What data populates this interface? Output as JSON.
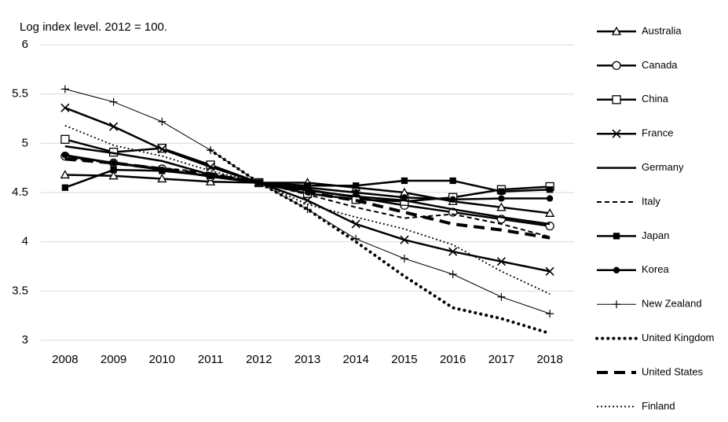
{
  "chart_data": {
    "type": "line",
    "title": "Log index level. 2012 = 100.",
    "categories": [
      "2008",
      "2009",
      "2010",
      "2011",
      "2012",
      "2013",
      "2014",
      "2015",
      "2016",
      "2017",
      "2018"
    ],
    "ylim": [
      3,
      6
    ],
    "yticks": [
      3,
      3.5,
      4,
      4.5,
      5,
      5.5,
      6
    ],
    "grid": true,
    "legend": "right",
    "series": [
      {
        "name": "Australia",
        "color": "#000000",
        "marker": "triangle",
        "dash": "none",
        "width": 2.5,
        "values": [
          4.68,
          4.67,
          4.64,
          4.61,
          4.6,
          4.6,
          4.55,
          4.5,
          4.41,
          4.35,
          4.29
        ]
      },
      {
        "name": "Canada",
        "color": "#000000",
        "marker": "circle",
        "dash": "none",
        "width": 2.5,
        "values": [
          4.87,
          4.8,
          4.74,
          4.66,
          4.6,
          4.53,
          4.45,
          4.37,
          4.3,
          4.23,
          4.16
        ]
      },
      {
        "name": "China",
        "color": "#000000",
        "marker": "square",
        "dash": "none",
        "width": 2.5,
        "values": [
          5.04,
          4.91,
          4.95,
          4.78,
          4.6,
          4.49,
          4.43,
          4.41,
          4.45,
          4.53,
          4.56
        ]
      },
      {
        "name": "France",
        "color": "#000000",
        "marker": "x",
        "dash": "none",
        "width": 2.5,
        "values": [
          5.36,
          5.17,
          4.94,
          4.76,
          4.6,
          4.42,
          4.18,
          4.02,
          3.9,
          3.8,
          3.7
        ]
      },
      {
        "name": "Germany",
        "color": "#000000",
        "marker": "none",
        "dash": "none",
        "width": 2.5,
        "values": [
          4.97,
          4.9,
          4.82,
          4.68,
          4.6,
          4.52,
          4.46,
          4.42,
          4.33,
          4.25,
          4.18
        ]
      },
      {
        "name": "Italy",
        "color": "#000000",
        "marker": "none",
        "dash": "6,4",
        "width": 2,
        "values": [
          4.85,
          4.8,
          4.75,
          4.7,
          4.6,
          4.48,
          4.35,
          4.24,
          4.28,
          4.18,
          4.05
        ]
      },
      {
        "name": "Japan",
        "color": "#000000",
        "marker": "filled-square",
        "dash": "none",
        "width": 2.5,
        "values": [
          4.55,
          4.73,
          4.72,
          4.67,
          4.6,
          4.57,
          4.57,
          4.62,
          4.62,
          4.51,
          4.53
        ]
      },
      {
        "name": "Korea",
        "color": "#000000",
        "marker": "filled-circle",
        "dash": "none",
        "width": 2.5,
        "values": [
          4.88,
          4.8,
          4.73,
          4.67,
          4.6,
          4.55,
          4.5,
          4.45,
          4.43,
          4.44,
          4.44
        ]
      },
      {
        "name": "New Zealand",
        "color": "#000000",
        "marker": "plus",
        "dash": "none",
        "width": 1,
        "values": [
          5.55,
          5.42,
          5.22,
          4.93,
          4.6,
          4.33,
          4.03,
          3.83,
          3.67,
          3.44,
          3.27
        ]
      },
      {
        "name": "United Kingdom",
        "color": "#000000",
        "marker": "none",
        "dash": "0.1,7",
        "width": 4,
        "values": [
          null,
          null,
          null,
          4.93,
          4.6,
          4.33,
          4.0,
          3.65,
          3.33,
          3.22,
          3.07
        ]
      },
      {
        "name": "United States",
        "color": "#000000",
        "marker": "none",
        "dash": "14,8",
        "width": 4,
        "values": [
          4.84,
          4.8,
          4.74,
          4.68,
          4.6,
          4.5,
          4.42,
          4.3,
          4.18,
          4.12,
          4.04
        ]
      },
      {
        "name": "Finland",
        "color": "#000000",
        "marker": "none",
        "dash": "2,3",
        "width": 1.8,
        "values": [
          5.18,
          4.98,
          4.87,
          4.72,
          4.6,
          4.38,
          4.25,
          4.13,
          3.97,
          3.7,
          3.47
        ]
      }
    ]
  }
}
